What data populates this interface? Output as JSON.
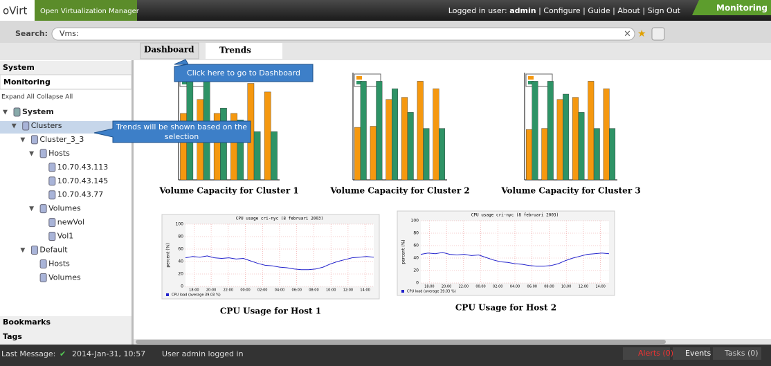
{
  "header": {
    "logo": "oVirt",
    "product": "Open Virtualization Manager",
    "logged_in_label": "Logged in user:",
    "user": "admin",
    "links": [
      "Configure",
      "Guide",
      "About",
      "Sign Out"
    ],
    "active_tab": "Monitoring"
  },
  "search": {
    "label": "Search:",
    "query": "Vms:"
  },
  "tabs": [
    "Dashboard",
    "Trends"
  ],
  "sidebar": {
    "sections": [
      "System",
      "Monitoring"
    ],
    "actions": [
      "Expand All",
      "Collapse All"
    ],
    "tree": [
      {
        "label": "System",
        "children": [
          {
            "label": "Clusters",
            "children": [
              {
                "label": "Cluster_3_3",
                "children": [
                  {
                    "label": "Hosts",
                    "children": [
                      {
                        "label": "10.70.43.113"
                      },
                      {
                        "label": "10.70.43.145"
                      },
                      {
                        "label": "10.70.43.77"
                      }
                    ]
                  },
                  {
                    "label": "Volumes",
                    "children": [
                      {
                        "label": "newVol"
                      },
                      {
                        "label": "Vol1"
                      }
                    ]
                  }
                ]
              },
              {
                "label": "Default",
                "children": [
                  {
                    "label": "Hosts"
                  },
                  {
                    "label": "Volumes"
                  }
                ]
              }
            ]
          }
        ]
      }
    ],
    "footer_sections": [
      "Bookmarks",
      "Tags"
    ]
  },
  "callouts": [
    "Click here to go to Dashboard",
    "Trends will be shown based on the selection"
  ],
  "volume_charts": [
    {
      "type": "bar",
      "title": "Volume Capacity for Cluster 1",
      "ylim": [
        0,
        100
      ],
      "series": [
        {
          "color": "#f5980f",
          "values": [
            62,
            75,
            62,
            62,
            90,
            82
          ]
        },
        {
          "color": "#2e9366",
          "values": [
            92,
            92,
            67,
            56,
            45,
            45
          ]
        }
      ]
    },
    {
      "type": "bar",
      "title": "Volume Capacity for Cluster 2",
      "ylim": [
        0,
        100
      ],
      "series": [
        {
          "color": "#f5980f",
          "values": [
            49,
            50,
            75,
            77,
            92,
            85
          ]
        },
        {
          "color": "#2e9366",
          "values": [
            92,
            92,
            85,
            63,
            48,
            48
          ]
        }
      ]
    },
    {
      "type": "bar",
      "title": "Volume Capacity for Cluster 3",
      "ylim": [
        0,
        100
      ],
      "series": [
        {
          "color": "#f5980f",
          "values": [
            47,
            48,
            75,
            77,
            92,
            85
          ]
        },
        {
          "color": "#2e9366",
          "values": [
            92,
            92,
            80,
            63,
            48,
            48
          ]
        }
      ]
    }
  ],
  "cpu_charts": [
    {
      "type": "line",
      "title": "CPU Usage for Host 1",
      "plot_title": "CPU usage cri-nyc (8 februari 2003)",
      "ylabel": "percent (%)",
      "legend": "CPU load (average 39.03 %)",
      "color": "#2222cc",
      "ylim": [
        0,
        100
      ],
      "yticks": [
        0,
        20,
        40,
        60,
        80,
        100
      ],
      "xticks": [
        "18:00",
        "20:00",
        "22:00",
        "00:00",
        "02:00",
        "04:00",
        "06:00",
        "08:00",
        "10:00",
        "12:00",
        "14:00"
      ],
      "values": [
        46,
        48,
        47,
        49,
        46,
        45,
        46,
        44,
        45,
        41,
        37,
        34,
        33,
        31,
        30,
        28,
        27,
        27,
        28,
        31,
        36,
        40,
        43,
        46,
        47,
        48,
        47
      ]
    },
    {
      "type": "line",
      "title": "CPU Usage for Host 2",
      "plot_title": "CPU usage cri-nyc (8 februari 2003)",
      "ylabel": "percent (%)",
      "legend": "CPU load (average 39.03 %)",
      "color": "#2222cc",
      "ylim": [
        0,
        100
      ],
      "yticks": [
        0,
        20,
        40,
        60,
        80,
        100
      ],
      "xticks": [
        "18:00",
        "20:00",
        "22:00",
        "00:00",
        "02:00",
        "04:00",
        "06:00",
        "08:00",
        "10:00",
        "12:00",
        "14:00"
      ],
      "values": [
        46,
        48,
        47,
        49,
        46,
        45,
        46,
        44,
        45,
        41,
        37,
        34,
        33,
        31,
        30,
        28,
        27,
        27,
        28,
        31,
        36,
        40,
        43,
        46,
        47,
        48,
        47
      ]
    }
  ],
  "status": {
    "label": "Last Message:",
    "time": "2014-Jan-31, 10:57",
    "message": "User admin logged in",
    "alerts": "Alerts (0)",
    "events": "Events",
    "tasks": "Tasks (0)"
  }
}
